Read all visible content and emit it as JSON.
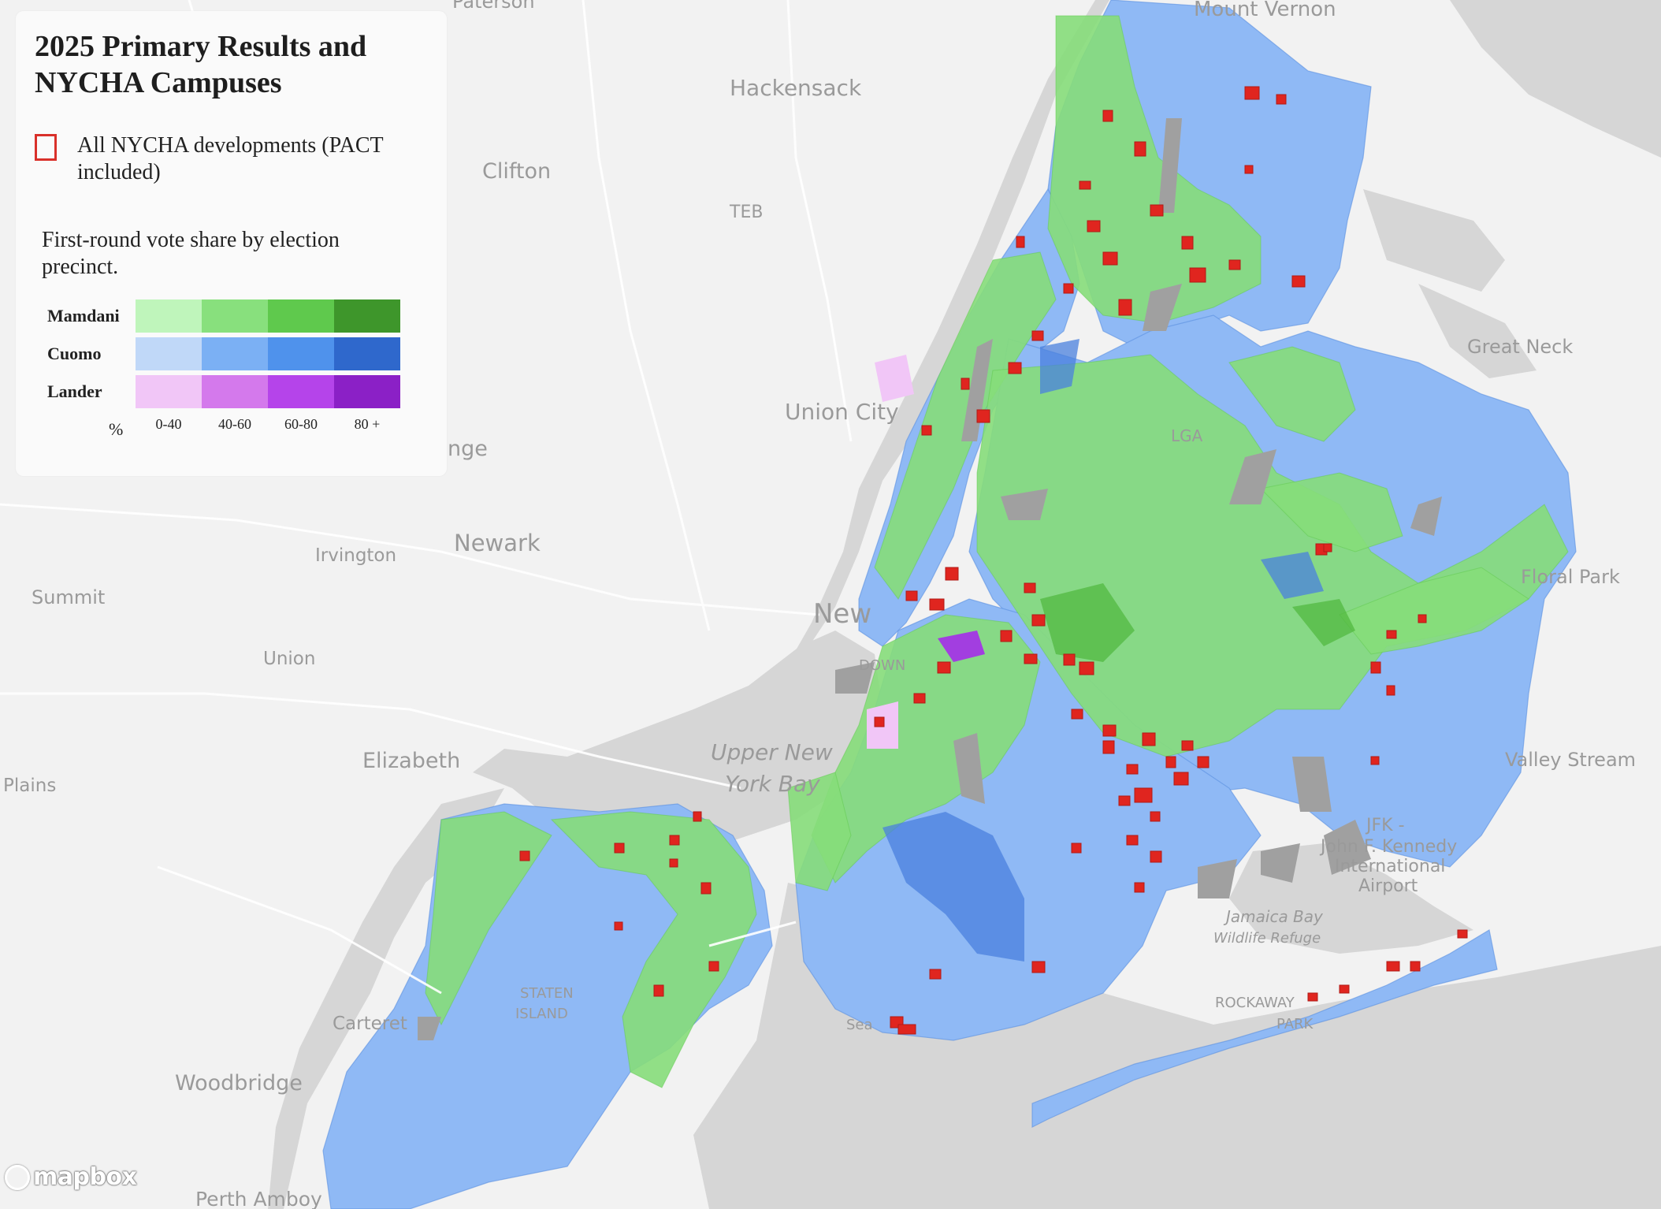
{
  "legend": {
    "title": "2025 Primary Results and NYCHA Campuses",
    "nycha_label": "All NYCHA developments (PACT included)",
    "note": "First-round vote share by election precinct.",
    "rows": [
      {
        "label": "Mamdani",
        "colors": [
          "#bff5bb",
          "#88e07d",
          "#5fc94d",
          "#3e962b"
        ]
      },
      {
        "label": "Cuomo",
        "colors": [
          "#c0d8f8",
          "#7bb0f4",
          "#4f92ec",
          "#2f68cc"
        ]
      },
      {
        "label": "Lander",
        "colors": [
          "#f1c6f7",
          "#d479ec",
          "#b544ea",
          "#8b20c6"
        ]
      }
    ],
    "bins": [
      "0-40",
      "40-60",
      "60-80",
      "80 +"
    ],
    "unit": "%"
  },
  "map": {
    "places": [
      "Paterson",
      "Mount Vernon",
      "Hackensack",
      "Clifton",
      "TEB",
      "Great Neck",
      "Union City",
      "LGA",
      "nge",
      "Irvington",
      "Newark",
      "Summit",
      "New",
      "Floral Park",
      "Union",
      "DOWN",
      "Upper New",
      "York Bay",
      "Elizabeth",
      "Valley Stream",
      "Plains",
      "JFK -",
      "John F. Kennedy",
      "International",
      "Airport",
      "Jamaica Bay",
      "Wildlife Refuge",
      "STATEN",
      "ISLAND",
      "Carteret",
      "ROCKAWAY",
      "PARK",
      "Woodbridge",
      "Perth Amboy",
      "Sea"
    ],
    "attribution": "mapbox",
    "colors": {
      "nycha": "#d9302a",
      "land": "#f2f2f2",
      "water": "#d6d6d6",
      "park": "#a0a0a0"
    }
  }
}
